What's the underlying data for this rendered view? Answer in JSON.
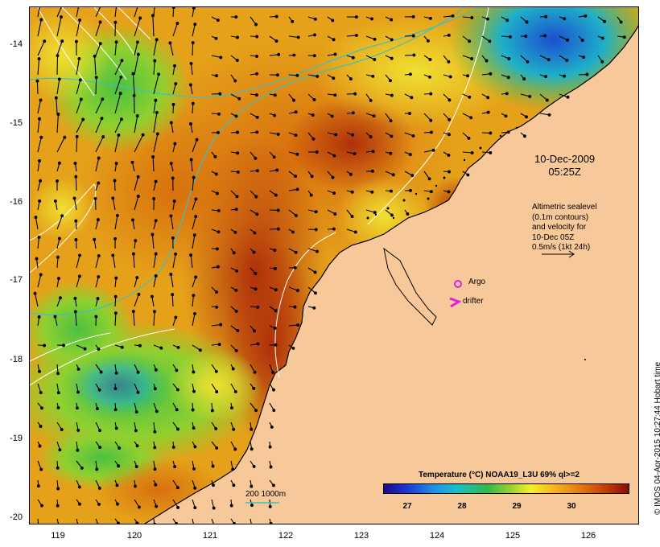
{
  "map": {
    "date_time": [
      "10-Dec-2009",
      "05:25Z"
    ],
    "altimetric_note": [
      "Altimetric sealevel",
      "(0.1m contours)",
      "and velocity for",
      "10-Dec 05Z",
      "0.5m/s (1kt 24h)"
    ],
    "argo_label": "Argo",
    "drifter_label": "drifter",
    "depth_label": "200  1000m",
    "credit": "© IMOS 04-Apr-2015 10:27:44 Hobart time",
    "colors": {
      "land": "#f7c99a",
      "argo_marker": "#e020e0",
      "drifter_marker": "#e020e0",
      "isobath": "#40c0c0"
    }
  },
  "colorbar": {
    "title": "Temperature (°C) NOAA19_L3U 69% ql>=2",
    "ticks": [
      "27",
      "28",
      "29",
      "30"
    ]
  },
  "axes": {
    "lat_ticks": [
      "-14",
      "-15",
      "-16",
      "-17",
      "-18",
      "-19",
      "-20"
    ],
    "lon_ticks": [
      "119",
      "120",
      "121",
      "122",
      "123",
      "124",
      "125",
      "126"
    ]
  }
}
